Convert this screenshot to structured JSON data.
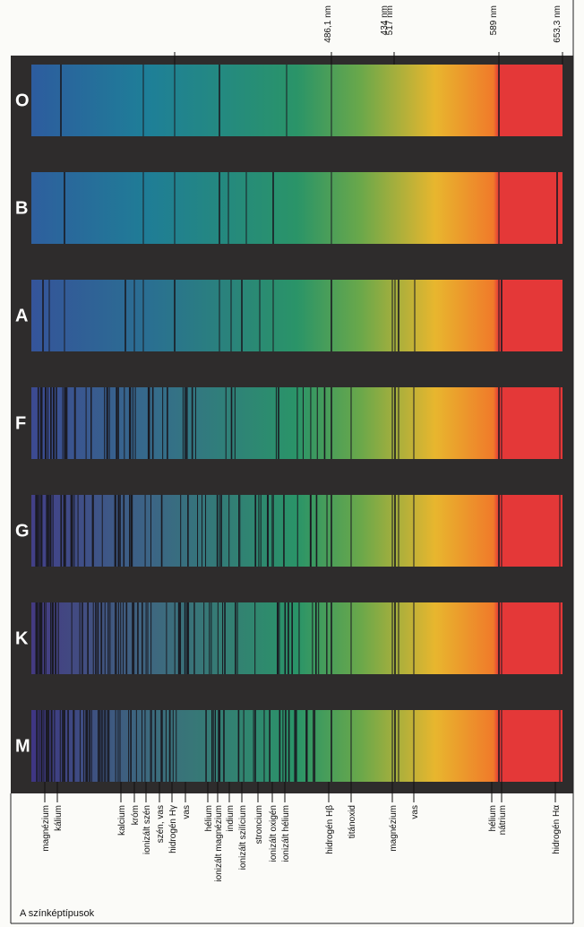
{
  "rows": [
    "O",
    "B",
    "A",
    "F",
    "G",
    "K",
    "M"
  ],
  "wavelength_labels": [
    "434 nm",
    "486,1 nm",
    "517 nm",
    "589 nm",
    "653,3 nm"
  ],
  "element_labels": [
    "magnézium",
    "kálium",
    "kalcium",
    "króm",
    "ionizált szén",
    "szén, vas",
    "hidrogén Hγ",
    "vas",
    "hélium",
    "ionizált magnézium",
    "indium",
    "ionizált szilícium",
    "stroncium",
    "ionizált oxigén",
    "ionizált hélium",
    "hidrogén Hβ",
    "titánoxid",
    "magnézium",
    "vas",
    "hélium",
    "nátrium",
    "hidrogén Hα"
  ],
  "caption": "A színképtípusok"
}
